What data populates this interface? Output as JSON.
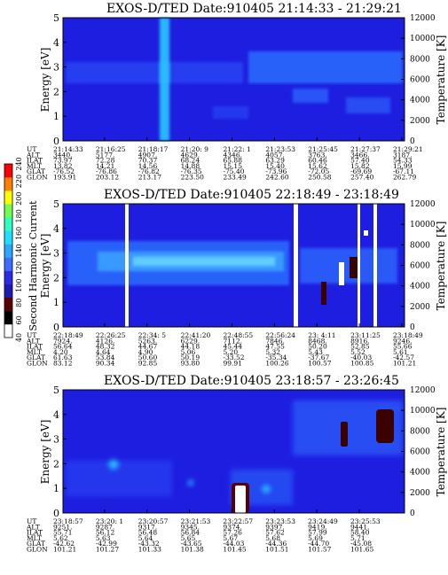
{
  "chart_data": [
    {
      "type": "heatmap",
      "title": "EXOS-D/TED   Date:910405  21:14:33 - 21:29:21",
      "ylabel": "Energy [eV]",
      "ylabel_right": "Temperature [K]",
      "y_ticks": [
        "0",
        "1",
        "2",
        "3",
        "4",
        "5"
      ],
      "y2_ticks": [
        "0",
        "2000",
        "4000",
        "6000",
        "8000",
        "10000",
        "12000"
      ],
      "ylim": [
        0,
        5
      ],
      "y2lim": [
        0,
        12000
      ],
      "rows": [
        {
          "label": "UT",
          "values": [
            "21:14:33",
            "21:16:25",
            "21:18:17",
            "21:20: 9",
            "21:22: 1",
            "21:23:53",
            "21:25:45",
            "21:27:37",
            "21:29:21"
          ]
        },
        {
          "label": "ALT",
          "values": [
            "3440.",
            "5177.",
            "4907.",
            "4629.",
            "4346.",
            "4057.",
            "3763.",
            "3466.",
            "3187."
          ]
        },
        {
          "label": "ILAT",
          "values": [
            "73.97",
            "72.28",
            "70.37",
            "68.24",
            "65.88",
            "63.29",
            "60.46",
            "57.40",
            "54.33"
          ]
        },
        {
          "label": "MLT",
          "values": [
            "13.82",
            "14.21",
            "14.56",
            "14.88",
            "15.15",
            "15.40",
            "15.62",
            "15.82",
            "15.99"
          ]
        },
        {
          "label": "GLAT",
          "values": [
            "-76.52",
            "-76.86",
            "-76.82",
            "-76.35",
            "-75.40",
            "-73.96",
            "-72.05",
            "-69.69",
            "-67.11"
          ]
        },
        {
          "label": "GLON",
          "values": [
            "193.91",
            "203.12",
            "213.17",
            "223.50",
            "233.49",
            "242.60",
            "250.58",
            "257.40",
            "262.79"
          ]
        }
      ]
    },
    {
      "type": "heatmap",
      "title": "EXOS-D/TED   Date:910405  22:18:49 - 23:18:49",
      "ylabel": "Energy [eV]",
      "ylabel_right": "Temperature [K]",
      "y_ticks": [
        "0",
        "1",
        "2",
        "3",
        "4",
        "5"
      ],
      "y2_ticks": [
        "0",
        "2000",
        "4000",
        "6000",
        "8000",
        "10000",
        "12000"
      ],
      "ylim": [
        0,
        5
      ],
      "y2lim": [
        0,
        12000
      ],
      "rows": [
        {
          "label": "UT",
          "values": [
            "22:18:49",
            "22:26:25",
            "22:34: 5",
            "22:41:20",
            "22:48:55",
            "22:56:24",
            "23: 4:11",
            "23:11:25",
            "23:18:49"
          ]
        },
        {
          "label": "ALT",
          "values": [
            "7924.",
            "4126.",
            "5263.",
            "6229.",
            "7112.",
            "7846.",
            "8468.",
            "8916.",
            "9246."
          ]
        },
        {
          "label": "ILAT",
          "values": [
            "56.64",
            "48.32",
            "44.67",
            "44.18",
            "45.44",
            "47.55",
            "50.20",
            "52.85",
            "55.66"
          ]
        },
        {
          "label": "MLT",
          "values": [
            "4.20",
            "4.64",
            "4.90",
            "5.06",
            "5.20",
            "5.32",
            "5.43",
            "5.52",
            "5.61"
          ]
        },
        {
          "label": "GLAT",
          "values": [
            "61.63",
            "53.84",
            "50.60",
            "50.19",
            "-33.52",
            "-35.34",
            "-37.67",
            "-40.03",
            "-42.57"
          ]
        },
        {
          "label": "GLON",
          "values": [
            "83.12",
            "90.34",
            "92.85",
            "93.80",
            "99.91",
            "100.26",
            "100.57",
            "100.85",
            "101.21"
          ]
        }
      ]
    },
    {
      "type": "heatmap",
      "title": "EXOS-D/TED   Date:910405  23:18:57 - 23:26:45",
      "ylabel": "Energy [eV]",
      "ylabel_right": "Temperature [K]",
      "y_ticks": [
        "0",
        "1",
        "2",
        "3",
        "4",
        "5"
      ],
      "y2_ticks": [
        "0",
        "2000",
        "4000",
        "6000",
        "8000",
        "10000",
        "12000"
      ],
      "ylim": [
        0,
        5
      ],
      "y2lim": [
        0,
        12000
      ],
      "rows": [
        {
          "label": "UT",
          "values": [
            "23:18:57",
            "23:20: 1",
            "23:20:57",
            "23:21:53",
            "23:22:57",
            "23:23:53",
            "23:24:49",
            "23:25:53"
          ]
        },
        {
          "label": "ALT",
          "values": [
            "9251.",
            "9287.",
            "9317.",
            "9345.",
            "9374.",
            "9397.",
            "9419.",
            "9441."
          ]
        },
        {
          "label": "ILAT",
          "values": [
            "55.71",
            "56.12",
            "56.48",
            "56.84",
            "57.26",
            "57.62",
            "57.99",
            "58.40"
          ]
        },
        {
          "label": "MLT",
          "values": [
            "5.62",
            "5.63",
            "5.64",
            "5.65",
            "5.67",
            "5.68",
            "5.69",
            "5.71"
          ]
        },
        {
          "label": "GLAT",
          "values": [
            "-42.62",
            "-42.99",
            "-43.32",
            "-43.65",
            "-44.03",
            "-44.36",
            "-44.70",
            "-45.08"
          ]
        },
        {
          "label": "GLON",
          "values": [
            "101.21",
            "101.27",
            "101.33",
            "101.38",
            "101.45",
            "101.51",
            "101.57",
            "101.65"
          ]
        }
      ]
    }
  ],
  "colorbar": {
    "label": "Second Harmonic Current",
    "ticks": [
      "40",
      "60",
      "80",
      "100",
      "120",
      "140",
      "160",
      "180",
      "200",
      "220",
      "240"
    ],
    "colors": [
      "#ffffff",
      "#000000",
      "#5a0000",
      "#1c1cb4",
      "#2a2ae8",
      "#3a6cff",
      "#2aa8ff",
      "#20e0ff",
      "#30ffc0",
      "#70ff50",
      "#ffff00",
      "#ff8000",
      "#ff0000"
    ]
  },
  "colors": {
    "background_field": "#1e1ee0",
    "band": "#2c6cff",
    "band_light": "#3aa0ff",
    "column": "#2ac8ff"
  }
}
